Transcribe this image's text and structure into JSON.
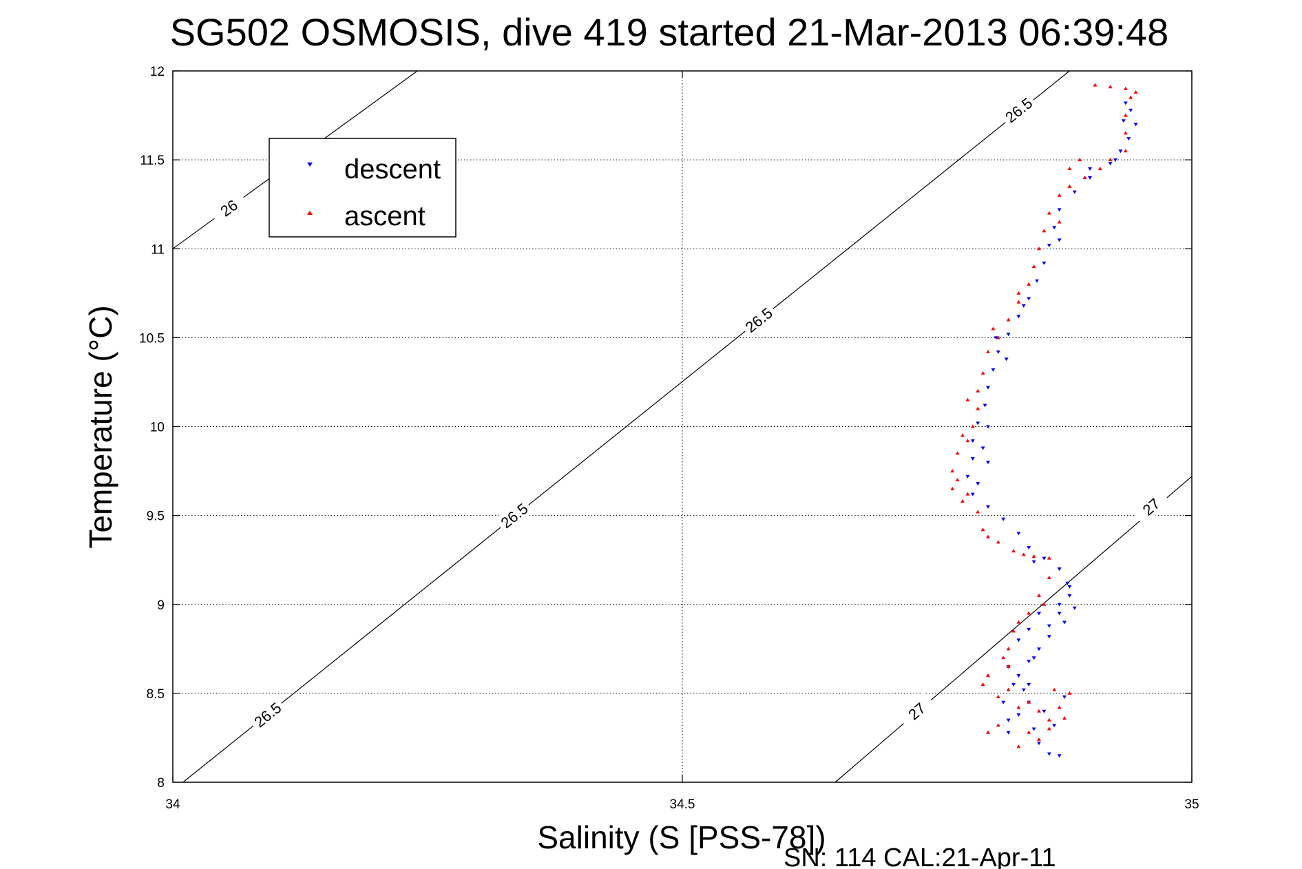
{
  "chart_data": {
    "type": "scatter",
    "title": "SG502 OSMOSIS, dive 419 started 21-Mar-2013 06:39:48",
    "xlabel": "Salinity (S [PSS-78])",
    "ylabel": "Temperature (°C)",
    "xlim": [
      34,
      35
    ],
    "ylim": [
      8,
      12
    ],
    "xticks": [
      "34",
      "34.5",
      "35"
    ],
    "yticks": [
      "8",
      "8.5",
      "9",
      "9.5",
      "10",
      "10.5",
      "11",
      "11.5",
      "12"
    ],
    "grid": true,
    "legend": {
      "placement": "top-left"
    },
    "footer": "SN: 114  CAL:21-Apr-11",
    "density_contours": [
      {
        "label": "26",
        "points": [
          [
            34.0,
            11.0
          ],
          [
            34.24,
            12.0
          ]
        ],
        "label_at": [
          34.055,
          11.23
        ]
      },
      {
        "label": "26.5",
        "points": [
          [
            34.01,
            8.0
          ],
          [
            34.88,
            12.0
          ]
        ],
        "label_at": [
          [
            34.093,
            8.38
          ],
          [
            34.335,
            9.5
          ],
          [
            34.575,
            10.6
          ],
          [
            34.83,
            11.78
          ]
        ]
      },
      {
        "label": "27",
        "points": [
          [
            34.65,
            8.0
          ],
          [
            35.0,
            9.72
          ]
        ],
        "label_at": [
          [
            34.73,
            8.4
          ],
          [
            34.96,
            9.55
          ]
        ]
      }
    ],
    "series": [
      {
        "name": "descent",
        "color": "#0000ff",
        "marker": "triangle-down",
        "points": [
          [
            34.935,
            11.82
          ],
          [
            34.933,
            11.72
          ],
          [
            34.938,
            11.62
          ],
          [
            34.93,
            11.55
          ],
          [
            34.92,
            11.48
          ],
          [
            34.9,
            11.4
          ],
          [
            34.885,
            11.32
          ],
          [
            34.87,
            11.22
          ],
          [
            34.865,
            11.12
          ],
          [
            34.86,
            11.02
          ],
          [
            34.855,
            10.92
          ],
          [
            34.848,
            10.82
          ],
          [
            34.84,
            10.72
          ],
          [
            34.83,
            10.62
          ],
          [
            34.82,
            10.52
          ],
          [
            34.81,
            10.42
          ],
          [
            34.805,
            10.32
          ],
          [
            34.8,
            10.22
          ],
          [
            34.797,
            10.12
          ],
          [
            34.79,
            10.02
          ],
          [
            34.785,
            9.92
          ],
          [
            34.785,
            9.82
          ],
          [
            34.78,
            9.72
          ],
          [
            34.785,
            9.62
          ],
          [
            34.8,
            9.55
          ],
          [
            34.815,
            9.48
          ],
          [
            34.83,
            9.4
          ],
          [
            34.84,
            9.32
          ],
          [
            34.855,
            9.26
          ],
          [
            34.87,
            9.2
          ],
          [
            34.878,
            9.12
          ],
          [
            34.88,
            9.05
          ],
          [
            34.885,
            8.98
          ],
          [
            34.875,
            8.9
          ],
          [
            34.86,
            8.82
          ],
          [
            34.85,
            8.75
          ],
          [
            34.84,
            8.68
          ],
          [
            34.83,
            8.6
          ],
          [
            34.835,
            8.52
          ],
          [
            34.84,
            8.45
          ],
          [
            34.83,
            8.38
          ],
          [
            34.845,
            8.3
          ],
          [
            34.85,
            8.22
          ],
          [
            34.86,
            8.16
          ],
          [
            34.87,
            8.15
          ],
          [
            34.82,
            8.35
          ],
          [
            34.815,
            8.45
          ],
          [
            34.825,
            8.55
          ],
          [
            34.845,
            8.7
          ],
          [
            34.86,
            8.88
          ],
          [
            34.87,
            8.95
          ],
          [
            34.84,
            8.86
          ],
          [
            34.82,
            8.28
          ],
          [
            34.855,
            8.4
          ],
          [
            34.865,
            8.32
          ],
          [
            34.875,
            8.48
          ],
          [
            34.8,
            9.8
          ],
          [
            34.79,
            9.68
          ],
          [
            34.818,
            10.38
          ],
          [
            34.808,
            10.5
          ],
          [
            34.9,
            11.45
          ],
          [
            34.925,
            11.5
          ],
          [
            34.945,
            11.7
          ],
          [
            34.94,
            11.78
          ],
          [
            34.87,
            11.05
          ],
          [
            34.835,
            10.68
          ],
          [
            34.8,
            10.0
          ],
          [
            34.795,
            9.88
          ],
          [
            34.845,
            9.24
          ],
          [
            34.88,
            9.1
          ],
          [
            34.87,
            9.0
          ],
          [
            34.85,
            8.95
          ],
          [
            34.83,
            8.8
          ],
          [
            34.82,
            8.65
          ],
          [
            34.84,
            8.55
          ]
        ]
      },
      {
        "name": "ascent",
        "color": "#ff0000",
        "marker": "triangle-up",
        "points": [
          [
            34.905,
            11.92
          ],
          [
            34.92,
            11.91
          ],
          [
            34.935,
            11.9
          ],
          [
            34.945,
            11.88
          ],
          [
            34.94,
            11.85
          ],
          [
            34.935,
            11.75
          ],
          [
            34.935,
            11.65
          ],
          [
            34.935,
            11.55
          ],
          [
            34.92,
            11.5
          ],
          [
            34.91,
            11.45
          ],
          [
            34.895,
            11.4
          ],
          [
            34.88,
            11.35
          ],
          [
            34.89,
            11.5
          ],
          [
            34.88,
            11.45
          ],
          [
            34.87,
            11.3
          ],
          [
            34.86,
            11.2
          ],
          [
            34.855,
            11.1
          ],
          [
            34.85,
            11.0
          ],
          [
            34.845,
            10.9
          ],
          [
            34.84,
            10.8
          ],
          [
            34.83,
            10.7
          ],
          [
            34.82,
            10.6
          ],
          [
            34.81,
            10.5
          ],
          [
            34.8,
            10.42
          ],
          [
            34.795,
            10.3
          ],
          [
            34.79,
            10.2
          ],
          [
            34.79,
            10.1
          ],
          [
            34.785,
            10.0
          ],
          [
            34.78,
            9.92
          ],
          [
            34.77,
            9.85
          ],
          [
            34.765,
            9.75
          ],
          [
            34.765,
            9.65
          ],
          [
            34.775,
            9.58
          ],
          [
            34.79,
            9.52
          ],
          [
            34.795,
            9.42
          ],
          [
            34.81,
            9.35
          ],
          [
            34.825,
            9.3
          ],
          [
            34.845,
            9.27
          ],
          [
            34.86,
            9.26
          ],
          [
            34.86,
            9.15
          ],
          [
            34.85,
            9.05
          ],
          [
            34.84,
            8.95
          ],
          [
            34.825,
            8.85
          ],
          [
            34.82,
            8.75
          ],
          [
            34.82,
            8.65
          ],
          [
            34.8,
            8.6
          ],
          [
            34.795,
            8.55
          ],
          [
            34.81,
            8.48
          ],
          [
            34.83,
            8.42
          ],
          [
            34.85,
            8.4
          ],
          [
            34.87,
            8.42
          ],
          [
            34.88,
            8.5
          ],
          [
            34.875,
            8.36
          ],
          [
            34.86,
            8.3
          ],
          [
            34.84,
            8.28
          ],
          [
            34.83,
            8.2
          ],
          [
            34.85,
            8.24
          ],
          [
            34.86,
            8.35
          ],
          [
            34.81,
            8.32
          ],
          [
            34.8,
            8.28
          ],
          [
            34.87,
            11.15
          ],
          [
            34.83,
            10.75
          ],
          [
            34.805,
            10.55
          ],
          [
            34.78,
            10.15
          ],
          [
            34.775,
            9.95
          ],
          [
            34.77,
            9.7
          ],
          [
            34.78,
            9.62
          ],
          [
            34.8,
            9.38
          ],
          [
            34.835,
            9.28
          ],
          [
            34.855,
            9.0
          ],
          [
            34.83,
            8.9
          ],
          [
            34.815,
            8.7
          ],
          [
            34.82,
            8.52
          ],
          [
            34.84,
            8.45
          ],
          [
            34.865,
            8.52
          ]
        ]
      }
    ]
  }
}
